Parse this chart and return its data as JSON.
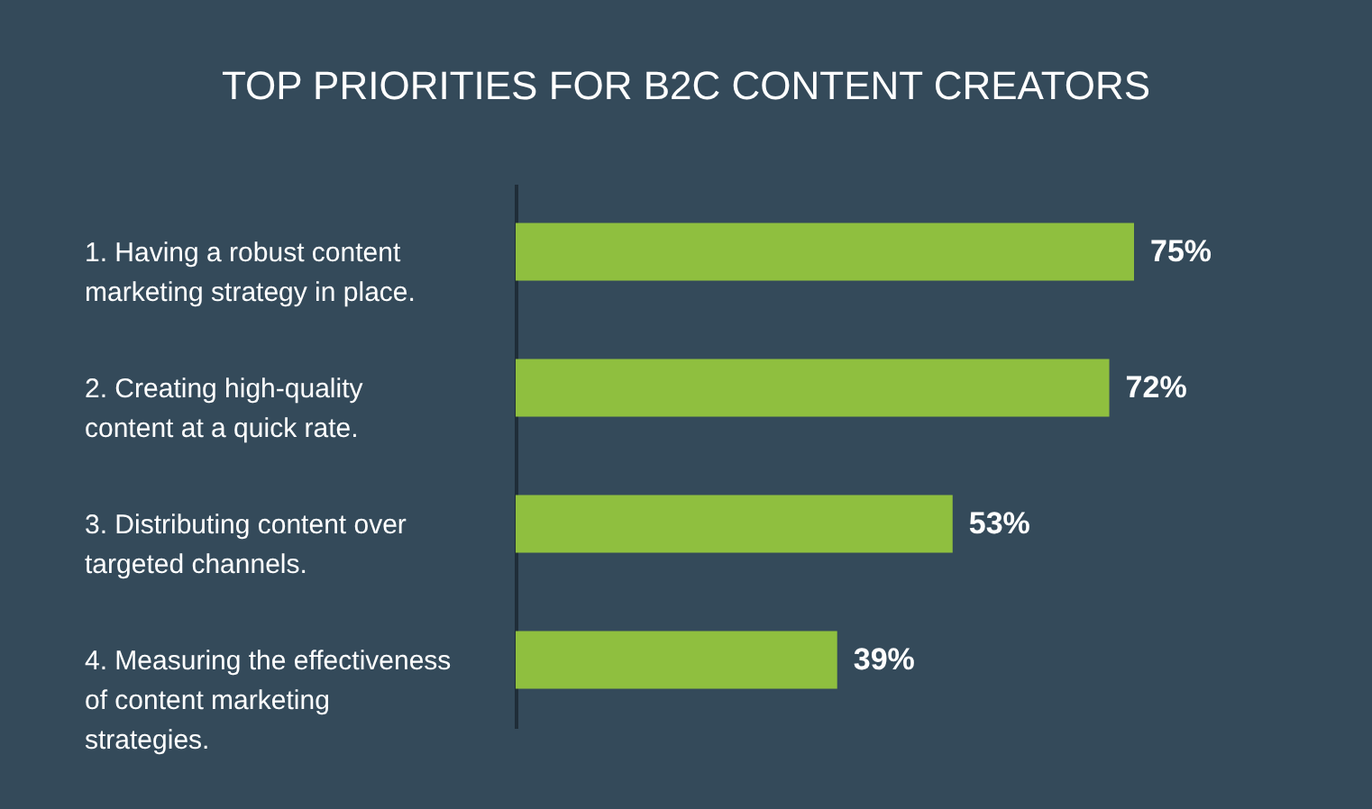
{
  "chart_data": {
    "type": "bar",
    "orientation": "horizontal",
    "title": "TOP PRIORITIES FOR B2C CONTENT CREATORS",
    "categories": [
      "1. Having a robust content marketing strategy in place.",
      "2. Creating high-quality content at a quick rate.",
      "3. Distributing content over targeted channels.",
      "4. Measuring the effectiveness of content marketing strategies."
    ],
    "values": [
      75,
      72,
      53,
      39
    ],
    "value_labels": [
      "75%",
      "72%",
      "53%",
      "39%"
    ],
    "color": "#8fbf3f"
  }
}
